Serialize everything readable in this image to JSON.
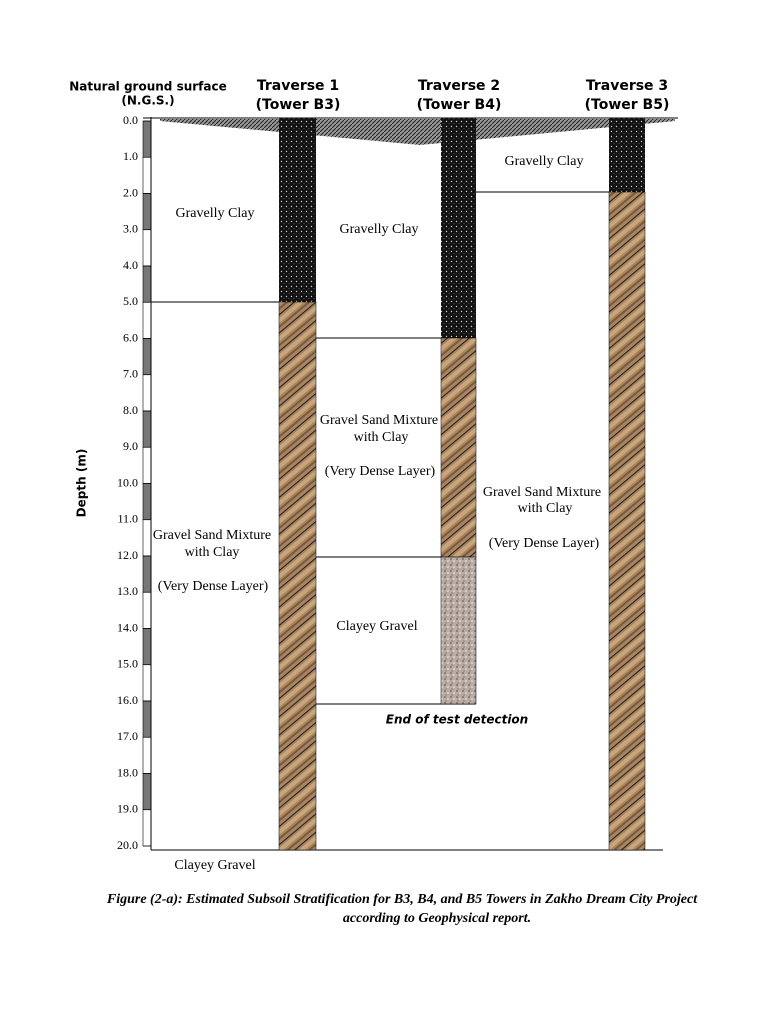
{
  "header": {
    "ngs_line1": "Natural ground surface",
    "ngs_line2": "(N.G.S.)"
  },
  "axis": {
    "label": "Depth (m)",
    "ticks": [
      "0.0",
      "1.0",
      "2.0",
      "3.0",
      "4.0",
      "5.0",
      "6.0",
      "7.0",
      "8.0",
      "9.0",
      "10.0",
      "11.0",
      "12.0",
      "13.0",
      "14.0",
      "15.0",
      "16.0",
      "17.0",
      "18.0",
      "19.0",
      "20.0"
    ]
  },
  "traverses": [
    {
      "name": "Traverse 1",
      "tower": "(Tower B3)"
    },
    {
      "name": "Traverse 2",
      "tower": "(Tower B4)"
    },
    {
      "name": "Traverse 3",
      "tower": "(Tower B5)"
    }
  ],
  "layers": {
    "traverse_1": [
      [
        "Gravelly Clay"
      ],
      [
        "Gravel Sand Mixture",
        "with Clay",
        "(Very Dense Layer)"
      ],
      [
        "Clayey Gravel"
      ]
    ],
    "traverse_2": [
      [
        "Gravelly Clay"
      ],
      [
        "Gravel Sand Mixture",
        "with Clay",
        "(Very Dense Layer)"
      ],
      [
        "Clayey Gravel"
      ]
    ],
    "traverse_3": [
      [
        "Gravelly Clay"
      ],
      [
        "Gravel Sand Mixture",
        "with Clay",
        "(Very Dense Layer)"
      ]
    ]
  },
  "end_note": "End of test detection",
  "caption": [
    "Figure (2-a): Estimated Subsoil Stratification for B3, B4, and B5 Towers in Zakho Dream City Project",
    "according to Geophysical report."
  ]
}
